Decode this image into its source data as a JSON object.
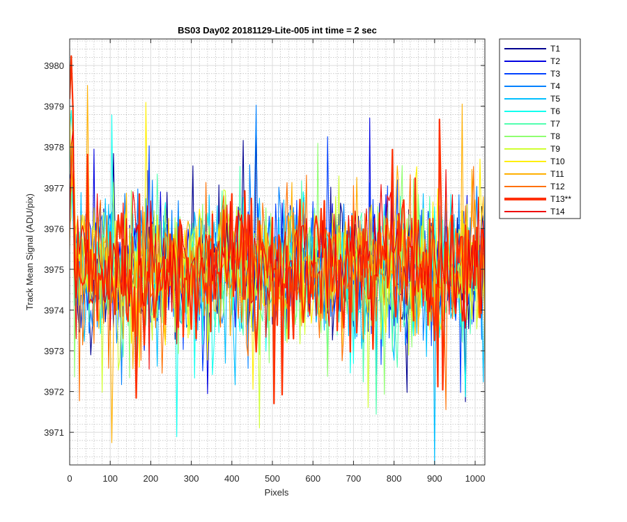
{
  "chart_data": {
    "type": "line",
    "title": "BS03 Day02 20181129-Lite-005 int time = 2 sec",
    "xlabel": "Pixels",
    "ylabel": "Track Mean Signal (ADU/pix)",
    "xlim": [
      0,
      1024
    ],
    "ylim": [
      3970.2,
      3980.65
    ],
    "xticks": [
      0,
      100,
      200,
      300,
      400,
      500,
      600,
      700,
      800,
      900,
      1000
    ],
    "yticks": [
      3971,
      3972,
      3973,
      3974,
      3975,
      3976,
      3977,
      3978,
      3979,
      3980
    ],
    "grid": "major and minor, dotted",
    "legend_position": "outside-top-right",
    "x_step": 4,
    "series_mean": 3975.0,
    "series": [
      {
        "name": "T1",
        "color": "#00008f",
        "seed": 11,
        "spread": 0.85
      },
      {
        "name": "T2",
        "color": "#0000e0",
        "seed": 23,
        "spread": 0.88
      },
      {
        "name": "T3",
        "color": "#0040ff",
        "seed": 37,
        "spread": 0.9
      },
      {
        "name": "T4",
        "color": "#0080ff",
        "seed": 41,
        "spread": 0.9
      },
      {
        "name": "T5",
        "color": "#00bfff",
        "seed": 53,
        "spread": 0.88
      },
      {
        "name": "T6",
        "color": "#10ffef",
        "seed": 67,
        "spread": 0.86
      },
      {
        "name": "T7",
        "color": "#50ffaf",
        "seed": 79,
        "spread": 0.86
      },
      {
        "name": "T8",
        "color": "#8fff70",
        "seed": 83,
        "spread": 0.84
      },
      {
        "name": "T9",
        "color": "#cfff30",
        "seed": 97,
        "spread": 0.84
      },
      {
        "name": "T10",
        "color": "#ffef00",
        "seed": 101,
        "spread": 0.85
      },
      {
        "name": "T11",
        "color": "#ffaf00",
        "seed": 113,
        "spread": 0.86
      },
      {
        "name": "T12",
        "color": "#ff7000",
        "seed": 127,
        "spread": 0.88
      },
      {
        "name": "T13**",
        "color": "#ff3000",
        "seed": 131,
        "spread": 0.9,
        "thick": true
      },
      {
        "name": "T14",
        "color": "#ef0000",
        "seed": 139,
        "spread": 0.84
      }
    ]
  }
}
